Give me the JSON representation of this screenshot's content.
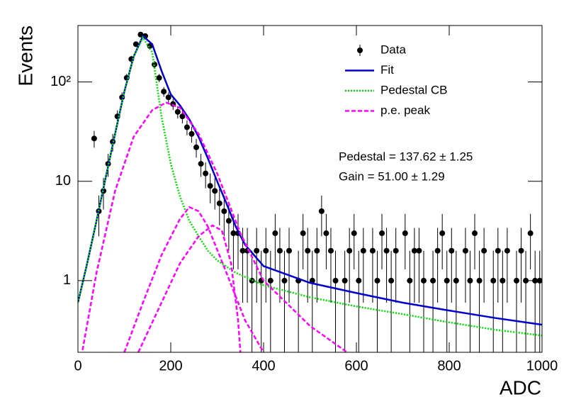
{
  "chart_data": {
    "type": "line",
    "y_label": "Events",
    "x_label": "ADC",
    "xlim": [
      0,
      1000
    ],
    "xticks": [
      0,
      200,
      400,
      600,
      800,
      1000
    ],
    "ylim": [
      0.19,
      370
    ],
    "log_y": true,
    "yticks": [
      1,
      10,
      {
        "value": 100,
        "label": "10²"
      }
    ],
    "legend": "top-right",
    "annotations": [
      "Pedestal = 137.62 ± 1.25",
      "Gain = 51.00 ± 1.29"
    ],
    "series": [
      {
        "name": "Data",
        "style": "points",
        "color": "#000000",
        "x": [
          5,
          15,
          25,
          35,
          45,
          55,
          65,
          75,
          85,
          95,
          105,
          115,
          125,
          135,
          145,
          155,
          165,
          175,
          185,
          195,
          205,
          215,
          225,
          235,
          245,
          255,
          265,
          275,
          285,
          295,
          305,
          315,
          325,
          335,
          345,
          355,
          365,
          375,
          385,
          395,
          405,
          415,
          425,
          435,
          445,
          455,
          465,
          475,
          485,
          495,
          505,
          515,
          525,
          535,
          545,
          555,
          565,
          575,
          585,
          595,
          605,
          615,
          625,
          635,
          645,
          655,
          665,
          675,
          685,
          695,
          705,
          715,
          725,
          735,
          745,
          755,
          765,
          775,
          785,
          795,
          805,
          815,
          825,
          835,
          845,
          855,
          865,
          875,
          885,
          895,
          905,
          915,
          925,
          935,
          945,
          955,
          965,
          975,
          985,
          995
        ],
        "values": [
          null,
          null,
          null,
          27,
          5,
          8,
          15,
          25,
          45,
          70,
          110,
          170,
          240,
          300,
          290,
          230,
          150,
          110,
          80,
          70,
          60,
          50,
          45,
          35,
          30,
          22,
          15,
          12,
          9,
          8,
          6,
          5,
          4,
          3,
          3,
          2,
          2,
          1,
          2,
          1,
          2,
          1,
          3,
          2,
          1,
          2,
          null,
          1,
          3,
          2,
          1,
          2,
          5,
          3,
          2,
          1,
          null,
          1,
          2,
          3,
          1,
          2,
          null,
          2,
          1,
          3,
          2,
          1,
          2,
          null,
          3,
          1,
          2,
          2,
          1,
          null,
          1,
          2,
          3,
          1,
          2,
          1,
          null,
          2,
          1,
          3,
          1,
          2,
          null,
          1,
          2,
          1,
          2,
          null,
          1,
          2,
          1,
          3,
          1,
          1
        ],
        "errors": [
          null,
          null,
          null,
          5.2,
          2.2,
          2.8,
          3.9,
          5,
          6.7,
          8.4,
          10.5,
          13,
          15.5,
          17.3,
          17,
          15.2,
          12.2,
          10.5,
          8.9,
          8.4,
          7.7,
          7.1,
          6.7,
          5.9,
          5.5,
          4.7,
          3.9,
          3.5,
          3,
          2.8,
          2.4,
          2.2,
          2,
          1.7,
          1.7,
          1.4,
          1.4,
          1,
          1.4,
          1,
          1.4,
          1,
          1.7,
          1.4,
          1,
          1.4,
          null,
          1,
          1.7,
          1.4,
          1,
          1.4,
          2.2,
          1.7,
          1.4,
          1,
          null,
          1,
          1.4,
          1.7,
          1,
          1.4,
          null,
          1.4,
          1,
          1.7,
          1.4,
          1,
          1.4,
          null,
          1.7,
          1,
          1.4,
          1.4,
          1,
          null,
          1,
          1.4,
          1.7,
          1,
          1.4,
          1,
          null,
          1.4,
          1,
          1.7,
          1,
          1.4,
          null,
          1,
          1.4,
          1,
          1.4,
          null,
          1,
          1.4,
          1,
          1.7,
          1,
          1
        ]
      },
      {
        "name": "Fit",
        "style": "solid",
        "color": "#0000cc",
        "curves": [
          {
            "x": [
              0,
              20,
              40,
              60,
              80,
              100,
              120,
              140,
              160,
              180,
              200,
              220,
              240,
              260,
              280,
              300,
              320,
              340,
              360,
              400,
              500,
              600,
              700,
              800,
              900,
              1000
            ],
            "values": [
              0.6,
              1.5,
              4,
              11,
              30,
              80,
              180,
              290,
              240,
              130,
              75,
              58,
              42,
              28,
              17,
              10,
              6,
              3.5,
              2.3,
              1.4,
              0.95,
              0.75,
              0.6,
              0.5,
              0.42,
              0.36
            ]
          }
        ]
      },
      {
        "name": "Pedestal CB",
        "style": "dotted",
        "color": "#00dd00",
        "curves": [
          {
            "x": [
              0,
              20,
              40,
              60,
              80,
              100,
              120,
              140,
              160,
              180,
              200,
              220,
              240,
              260,
              280,
              300,
              340,
              400,
              500,
              600,
              700,
              800,
              900,
              1000
            ],
            "values": [
              0.6,
              1.5,
              4,
              11,
              30,
              80,
              180,
              280,
              200,
              45,
              15,
              7,
              4,
              2.8,
              2,
              1.6,
              1.2,
              0.9,
              0.68,
              0.55,
              0.46,
              0.38,
              0.32,
              0.28
            ]
          }
        ]
      },
      {
        "name": "p.e. peak",
        "style": "dashed",
        "color": "#ff00ff",
        "curves": [
          {
            "x": [
              10,
              40,
              80,
              120,
              160,
              190,
              220,
              260,
              300,
              350,
              400,
              500,
              580
            ],
            "values": [
              0.2,
              1.2,
              8,
              28,
              52,
              62,
              55,
              30,
              12,
              3,
              1,
              0.35,
              0.19
            ]
          },
          {
            "x": [
              100,
              140,
              180,
              220,
              240,
              260,
              280,
              320,
              360,
              400
            ],
            "values": [
              0.19,
              0.6,
              1.8,
              4.2,
              5.5,
              5,
              3.5,
              1.2,
              0.4,
              0.19
            ]
          },
          {
            "x": [
              130,
              180,
              220,
              260,
              290,
              310,
              330,
              345,
              350
            ],
            "values": [
              0.19,
              0.6,
              1.5,
              2.8,
              3.6,
              3.2,
              1.5,
              0.4,
              0.19
            ]
          }
        ]
      }
    ]
  }
}
